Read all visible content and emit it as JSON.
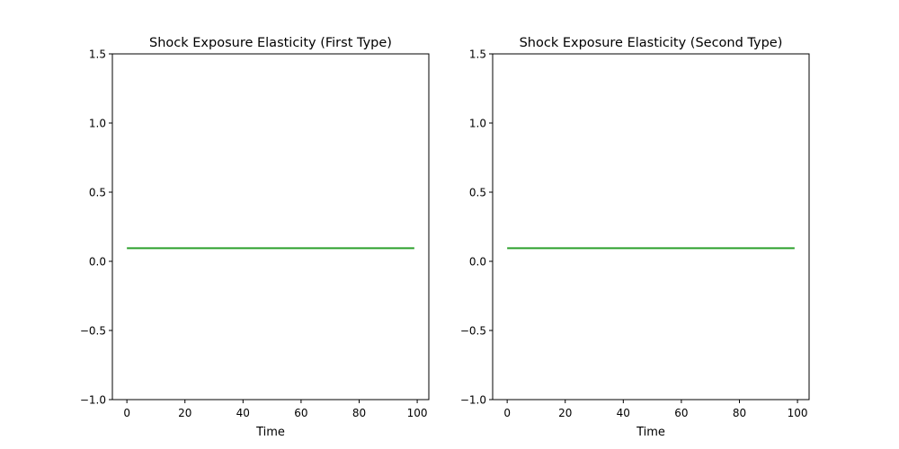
{
  "chart_data": [
    {
      "type": "line",
      "title": "Shock Exposure Elasticity (First Type)",
      "xlabel": "Time",
      "ylabel": "",
      "xlim": [
        -5,
        104
      ],
      "ylim": [
        -1.0,
        1.5
      ],
      "xticks": [
        0,
        20,
        40,
        60,
        80,
        100
      ],
      "xtick_labels": [
        "0",
        "20",
        "40",
        "60",
        "80",
        "100"
      ],
      "yticks": [
        -1.0,
        -0.5,
        0.0,
        0.5,
        1.0,
        1.5
      ],
      "ytick_labels": [
        "−1.0",
        "−0.5",
        "0.0",
        "0.5",
        "1.0",
        "1.5"
      ],
      "grid": false,
      "series": [
        {
          "color": "#2ca02c",
          "x": [
            0,
            99
          ],
          "y": [
            0.095,
            0.095
          ]
        }
      ]
    },
    {
      "type": "line",
      "title": "Shock Exposure Elasticity (Second Type)",
      "xlabel": "Time",
      "ylabel": "",
      "xlim": [
        -5,
        104
      ],
      "ylim": [
        -1.0,
        1.5
      ],
      "xticks": [
        0,
        20,
        40,
        60,
        80,
        100
      ],
      "xtick_labels": [
        "0",
        "20",
        "40",
        "60",
        "80",
        "100"
      ],
      "yticks": [
        -1.0,
        -0.5,
        0.0,
        0.5,
        1.0,
        1.5
      ],
      "ytick_labels": [
        "−1.0",
        "−0.5",
        "0.0",
        "0.5",
        "1.0",
        "1.5"
      ],
      "grid": false,
      "series": [
        {
          "color": "#2ca02c",
          "x": [
            0,
            99
          ],
          "y": [
            0.095,
            0.095
          ]
        }
      ]
    }
  ]
}
